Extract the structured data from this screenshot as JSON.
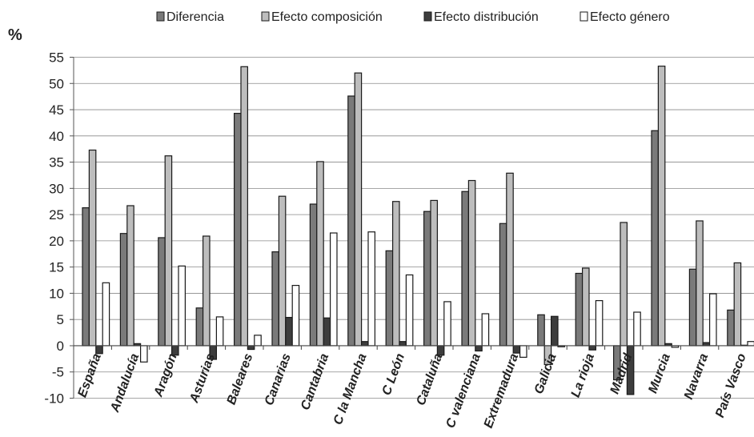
{
  "chart_data": {
    "type": "bar",
    "ylabel": "%",
    "ylim": [
      -10,
      55
    ],
    "yticks": [
      55,
      50,
      45,
      40,
      35,
      30,
      25,
      20,
      15,
      10,
      5,
      0,
      -5,
      -10
    ],
    "grid": true,
    "legend_position": "top",
    "categories": [
      "España",
      "Andalucía",
      "Aragón",
      "Asturias",
      "Baleares",
      "Canarias",
      "Cantabria",
      "C la Mancha",
      "C León",
      "Cataluña",
      "C valenciana",
      "Extremadura",
      "Galicia",
      "La rioja",
      "Madrid",
      "Murcia",
      "Navarra",
      "País Vasco"
    ],
    "series": [
      {
        "name": "Diferencia",
        "color": "#7a7a7a",
        "values": [
          26.3,
          21.4,
          20.6,
          7.2,
          44.3,
          17.9,
          27.0,
          47.6,
          18.1,
          25.6,
          29.4,
          23.3,
          5.9,
          13.8,
          -6.5,
          41.0,
          14.6,
          6.8
        ]
      },
      {
        "name": "Efecto composición",
        "color": "#bdbdbd",
        "values": [
          37.3,
          26.7,
          36.2,
          20.9,
          53.2,
          28.5,
          35.1,
          52.0,
          27.5,
          27.7,
          31.5,
          32.9,
          -3.6,
          14.8,
          23.5,
          53.3,
          23.8,
          15.8
        ]
      },
      {
        "name": "Efecto distribución",
        "color": "#3d3d3d",
        "values": [
          -1.5,
          0.4,
          -1.8,
          -2.6,
          -0.7,
          5.4,
          5.3,
          0.8,
          0.8,
          -1.8,
          -1.0,
          -1.4,
          5.6,
          -0.8,
          -9.3,
          0.4,
          0.6,
          0.1
        ]
      },
      {
        "name": "Efecto género",
        "color": "#ffffff",
        "values": [
          12.0,
          -3.1,
          15.2,
          5.5,
          2.0,
          11.5,
          21.5,
          21.7,
          13.5,
          8.4,
          6.1,
          -2.2,
          -0.2,
          8.6,
          6.4,
          -0.3,
          9.9,
          0.8
        ]
      }
    ]
  }
}
